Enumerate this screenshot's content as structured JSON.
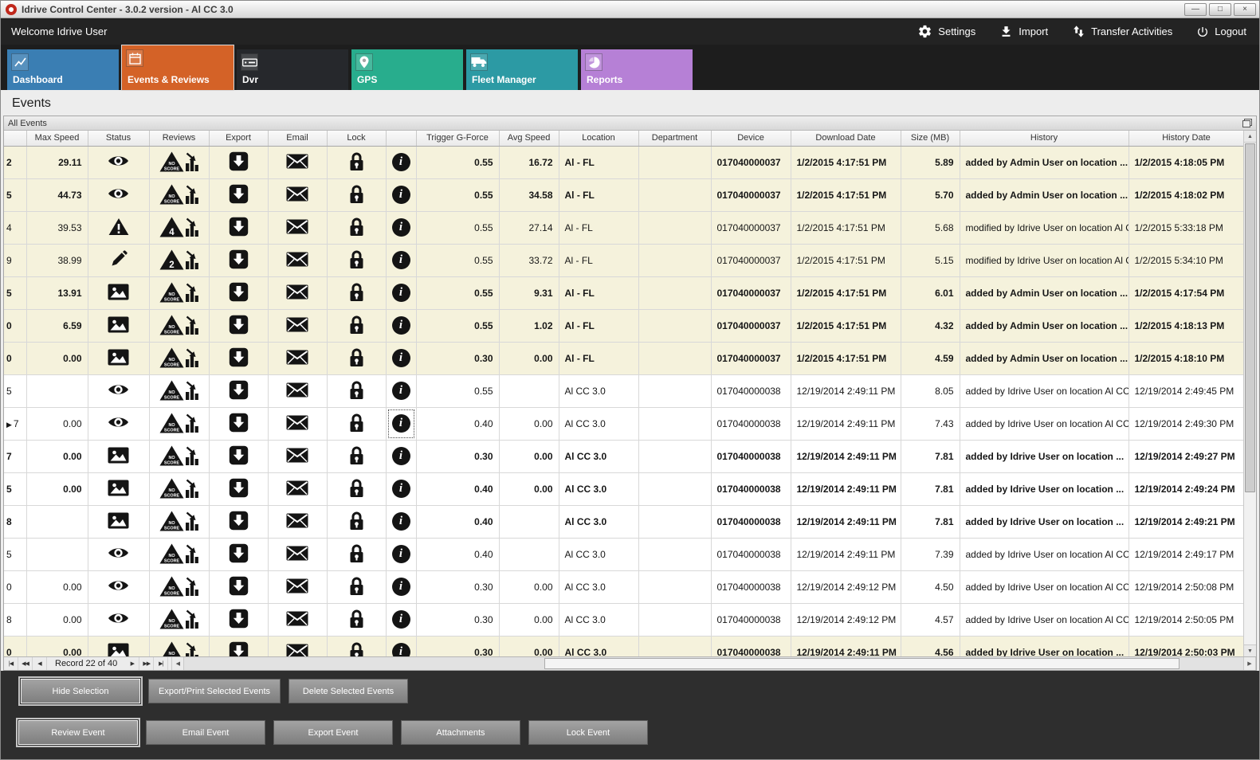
{
  "window": {
    "title": "Idrive Control Center - 3.0.2 version - Al CC 3.0"
  },
  "icons": {
    "minimize": "—",
    "maximize": "□",
    "close": "×",
    "nav_first": "|◀",
    "nav_prev_page": "◀◀",
    "nav_prev": "◀",
    "nav_next": "▶",
    "nav_next_page": "▶▶",
    "nav_last": "▶|",
    "scroll_left": "◀",
    "scroll_right": "▶",
    "scroll_up": "▲",
    "scroll_down": "▼",
    "row_marker": "▶",
    "info": "i"
  },
  "topbar": {
    "welcome": "Welcome Idrive User",
    "actions": [
      {
        "name": "settings",
        "label": "Settings",
        "icon": "gear-icon"
      },
      {
        "name": "import",
        "label": "Import",
        "icon": "import-icon"
      },
      {
        "name": "transfer-activities",
        "label": "Transfer Activities",
        "icon": "transfer-icon"
      },
      {
        "name": "logout",
        "label": "Logout",
        "icon": "power-icon"
      }
    ]
  },
  "tabs": [
    {
      "label": "Dashboard",
      "color": "#3a7eb3",
      "icon": "dashboard-chart-icon",
      "selected": false
    },
    {
      "label": "Events & Reviews",
      "color": "#d46227",
      "icon": "calendar-icon",
      "selected": true
    },
    {
      "label": "Dvr",
      "color": "#26282c",
      "icon": "dvr-icon",
      "selected": false
    },
    {
      "label": "GPS",
      "color": "#28ad8d",
      "icon": "map-pin-icon",
      "selected": false
    },
    {
      "label": "Fleet Manager",
      "color": "#2c9aa4",
      "icon": "truck-icon",
      "selected": false
    },
    {
      "label": "Reports",
      "color": "#b680d6",
      "icon": "pie-chart-icon",
      "selected": false
    }
  ],
  "page": {
    "title": "Events"
  },
  "panel": {
    "title": "All Events"
  },
  "grid": {
    "columns": [
      {
        "label": ""
      },
      {
        "label": "Max Speed"
      },
      {
        "label": "Status"
      },
      {
        "label": "Reviews"
      },
      {
        "label": "Export"
      },
      {
        "label": "Email"
      },
      {
        "label": "Lock"
      },
      {
        "label": ""
      },
      {
        "label": "Trigger G-Force"
      },
      {
        "label": "Avg Speed"
      },
      {
        "label": "Location"
      },
      {
        "label": "Department"
      },
      {
        "label": "Device"
      },
      {
        "label": "Download Date"
      },
      {
        "label": "Size (MB)"
      },
      {
        "label": "History"
      },
      {
        "label": "History Date"
      }
    ],
    "rows": [
      {
        "id_clip": "2",
        "max_speed": "29.11",
        "status": "eye",
        "review_score": "NO SCORE",
        "trigger_g_force": "0.55",
        "avg_speed": "16.72",
        "location": "Al - FL",
        "department": "",
        "device": "017040000037",
        "download_date": "1/2/2015 4:17:51 PM",
        "size_mb": "5.89",
        "history": "added by Admin User on location ...",
        "history_date": "1/2/2015 4:18:05 PM",
        "bold": true,
        "beige": true,
        "current": false
      },
      {
        "id_clip": "5",
        "max_speed": "44.73",
        "status": "eye",
        "review_score": "NO SCORE",
        "trigger_g_force": "0.55",
        "avg_speed": "34.58",
        "location": "Al - FL",
        "department": "",
        "device": "017040000037",
        "download_date": "1/2/2015 4:17:51 PM",
        "size_mb": "5.70",
        "history": "added by Admin User on location ...",
        "history_date": "1/2/2015 4:18:02 PM",
        "bold": true,
        "beige": true,
        "current": false
      },
      {
        "id_clip": "4",
        "max_speed": "39.53",
        "status": "warning",
        "review_score": "4",
        "trigger_g_force": "0.55",
        "avg_speed": "27.14",
        "location": "Al - FL",
        "department": "",
        "device": "017040000037",
        "download_date": "1/2/2015 4:17:51 PM",
        "size_mb": "5.68",
        "history": "modified by Idrive User on location Al C...",
        "history_date": "1/2/2015 5:33:18 PM",
        "bold": false,
        "beige": true,
        "current": false
      },
      {
        "id_clip": "9",
        "max_speed": "38.99",
        "status": "pencil",
        "review_score": "2",
        "trigger_g_force": "0.55",
        "avg_speed": "33.72",
        "location": "Al - FL",
        "department": "",
        "device": "017040000037",
        "download_date": "1/2/2015 4:17:51 PM",
        "size_mb": "5.15",
        "history": "modified by Idrive User on location Al C...",
        "history_date": "1/2/2015 5:34:10 PM",
        "bold": false,
        "beige": true,
        "current": false
      },
      {
        "id_clip": "5",
        "max_speed": "13.91",
        "status": "image",
        "review_score": "NO SCORE",
        "trigger_g_force": "0.55",
        "avg_speed": "9.31",
        "location": "Al - FL",
        "department": "",
        "device": "017040000037",
        "download_date": "1/2/2015 4:17:51 PM",
        "size_mb": "6.01",
        "history": "added by Admin User on location ...",
        "history_date": "1/2/2015 4:17:54 PM",
        "bold": true,
        "beige": true,
        "current": false
      },
      {
        "id_clip": "0",
        "max_speed": "6.59",
        "status": "image",
        "review_score": "NO SCORE",
        "trigger_g_force": "0.55",
        "avg_speed": "1.02",
        "location": "Al - FL",
        "department": "",
        "device": "017040000037",
        "download_date": "1/2/2015 4:17:51 PM",
        "size_mb": "4.32",
        "history": "added by Admin User on location ...",
        "history_date": "1/2/2015 4:18:13 PM",
        "bold": true,
        "beige": true,
        "current": false
      },
      {
        "id_clip": "0",
        "max_speed": "0.00",
        "status": "image",
        "review_score": "NO SCORE",
        "trigger_g_force": "0.30",
        "avg_speed": "0.00",
        "location": "Al - FL",
        "department": "",
        "device": "017040000037",
        "download_date": "1/2/2015 4:17:51 PM",
        "size_mb": "4.59",
        "history": "added by Admin User on location ...",
        "history_date": "1/2/2015 4:18:10 PM",
        "bold": true,
        "beige": true,
        "current": false
      },
      {
        "id_clip": "5",
        "max_speed": "",
        "status": "eye",
        "review_score": "NO SCORE",
        "trigger_g_force": "0.55",
        "avg_speed": "",
        "location": "Al CC 3.0",
        "department": "",
        "device": "017040000038",
        "download_date": "12/19/2014 2:49:11 PM",
        "size_mb": "8.05",
        "history": "added by Idrive User on location Al CC ...",
        "history_date": "12/19/2014 2:49:45 PM",
        "bold": false,
        "beige": false,
        "current": false
      },
      {
        "id_clip": "7",
        "max_speed": "0.00",
        "status": "eye",
        "review_score": "NO SCORE",
        "trigger_g_force": "0.40",
        "avg_speed": "0.00",
        "location": "Al CC 3.0",
        "department": "",
        "device": "017040000038",
        "download_date": "12/19/2014 2:49:11 PM",
        "size_mb": "7.43",
        "history": "added by Idrive User on location Al CC ...",
        "history_date": "12/19/2014 2:49:30 PM",
        "bold": false,
        "beige": false,
        "current": true
      },
      {
        "id_clip": "7",
        "max_speed": "0.00",
        "status": "image",
        "review_score": "NO SCORE",
        "trigger_g_force": "0.30",
        "avg_speed": "0.00",
        "location": "Al CC 3.0",
        "department": "",
        "device": "017040000038",
        "download_date": "12/19/2014 2:49:11 PM",
        "size_mb": "7.81",
        "history": "added by Idrive User on location ...",
        "history_date": "12/19/2014 2:49:27 PM",
        "bold": true,
        "beige": false,
        "current": false
      },
      {
        "id_clip": "5",
        "max_speed": "0.00",
        "status": "image",
        "review_score": "NO SCORE",
        "trigger_g_force": "0.40",
        "avg_speed": "0.00",
        "location": "Al CC 3.0",
        "department": "",
        "device": "017040000038",
        "download_date": "12/19/2014 2:49:11 PM",
        "size_mb": "7.81",
        "history": "added by Idrive User on location ...",
        "history_date": "12/19/2014 2:49:24 PM",
        "bold": true,
        "beige": false,
        "current": false
      },
      {
        "id_clip": "8",
        "max_speed": "",
        "status": "image",
        "review_score": "NO SCORE",
        "trigger_g_force": "0.40",
        "avg_speed": "",
        "location": "Al CC 3.0",
        "department": "",
        "device": "017040000038",
        "download_date": "12/19/2014 2:49:11 PM",
        "size_mb": "7.81",
        "history": "added by Idrive User on location ...",
        "history_date": "12/19/2014 2:49:21 PM",
        "bold": true,
        "beige": false,
        "current": false
      },
      {
        "id_clip": "5",
        "max_speed": "",
        "status": "eye",
        "review_score": "NO SCORE",
        "trigger_g_force": "0.40",
        "avg_speed": "",
        "location": "Al CC 3.0",
        "department": "",
        "device": "017040000038",
        "download_date": "12/19/2014 2:49:11 PM",
        "size_mb": "7.39",
        "history": "added by Idrive User on location Al CC ...",
        "history_date": "12/19/2014 2:49:17 PM",
        "bold": false,
        "beige": false,
        "current": false
      },
      {
        "id_clip": "0",
        "max_speed": "0.00",
        "status": "eye",
        "review_score": "NO SCORE",
        "trigger_g_force": "0.30",
        "avg_speed": "0.00",
        "location": "Al CC 3.0",
        "department": "",
        "device": "017040000038",
        "download_date": "12/19/2014 2:49:12 PM",
        "size_mb": "4.50",
        "history": "added by Idrive User on location Al CC ...",
        "history_date": "12/19/2014 2:50:08 PM",
        "bold": false,
        "beige": false,
        "current": false
      },
      {
        "id_clip": "8",
        "max_speed": "0.00",
        "status": "eye",
        "review_score": "NO SCORE",
        "trigger_g_force": "0.30",
        "avg_speed": "0.00",
        "location": "Al CC 3.0",
        "department": "",
        "device": "017040000038",
        "download_date": "12/19/2014 2:49:12 PM",
        "size_mb": "4.57",
        "history": "added by Idrive User on location Al CC ...",
        "history_date": "12/19/2014 2:50:05 PM",
        "bold": false,
        "beige": false,
        "current": false
      },
      {
        "id_clip": "0",
        "max_speed": "0.00",
        "status": "image",
        "review_score": "NO SCORE",
        "trigger_g_force": "0.30",
        "avg_speed": "0.00",
        "location": "Al CC 3.0",
        "department": "",
        "device": "017040000038",
        "download_date": "12/19/2014 2:49:11 PM",
        "size_mb": "4.56",
        "history": "added by Idrive User on location ...",
        "history_date": "12/19/2014 2:50:03 PM",
        "bold": true,
        "beige": true,
        "current": false
      }
    ]
  },
  "navigator": {
    "record_text": "Record 22 of 40"
  },
  "footer": {
    "row1": [
      {
        "label": "Hide Selection",
        "focused": true
      },
      {
        "label": "Export/Print Selected Events",
        "focused": false
      },
      {
        "label": "Delete Selected  Events",
        "focused": false
      }
    ],
    "row2": [
      {
        "label": "Review Event",
        "focused": true
      },
      {
        "label": "Email Event",
        "focused": false
      },
      {
        "label": "Export Event",
        "focused": false
      },
      {
        "label": "Attachments",
        "focused": false
      },
      {
        "label": "Lock Event",
        "focused": false
      }
    ]
  }
}
